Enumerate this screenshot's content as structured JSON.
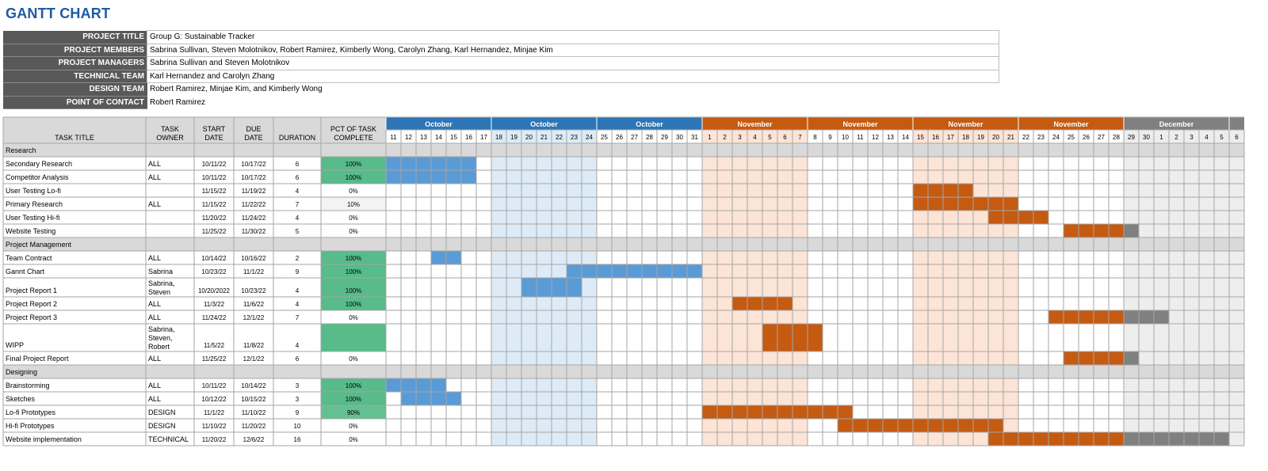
{
  "title": "GANTT CHART",
  "project_info": [
    {
      "label": "PROJECT TITLE",
      "value": "Group G: Sustainable Tracker"
    },
    {
      "label": "PROJECT MEMBERS",
      "value": "Sabrina Sullivan, Steven Molotnikov, Robert Ramirez, Kimberly Wong, Carolyn Zhang, Karl Hernandez, Minjae Kim"
    },
    {
      "label": "PROJECT MANAGERS",
      "value": "Sabrina Sullivan and Steven Molotnikov"
    },
    {
      "label": "TECHNICAL TEAM",
      "value": "Karl Hernandez and Carolyn Zhang"
    },
    {
      "label": "DESIGN TEAM",
      "value": "Robert Ramirez, Minjae Kim, and Kimberly Wong"
    },
    {
      "label": "POINT OF CONTACT",
      "value": "Robert Ramirez"
    }
  ],
  "colors": {
    "title": "#1f5aa6",
    "october": "#2e75b6",
    "october_bar": "#5b9bd5",
    "october_shade": "#ddebf7",
    "november": "#c55a11",
    "november_bar": "#c55a11",
    "november_shade": "#fce4d6",
    "december": "#808080",
    "december_bar": "#808080",
    "december_shade": "#ededed",
    "complete": "#57bb8a",
    "section": "#d9d9d9"
  },
  "chart_data": {
    "type": "table",
    "columns": [
      "TASK TITLE",
      "TASK OWNER",
      "START DATE",
      "DUE DATE",
      "DURATION",
      "PCT OF TASK COMPLETE"
    ],
    "months": [
      {
        "name": "October",
        "days": [
          11,
          12,
          13,
          14,
          15,
          16,
          17
        ],
        "color": "october",
        "shaded": false
      },
      {
        "name": "October",
        "days": [
          18,
          19,
          20,
          21,
          22,
          23,
          24
        ],
        "color": "october",
        "shaded": true
      },
      {
        "name": "October",
        "days": [
          25,
          26,
          27,
          28,
          29,
          30,
          31
        ],
        "color": "october",
        "shaded": false
      },
      {
        "name": "November",
        "days": [
          1,
          2,
          3,
          4,
          5,
          6,
          7
        ],
        "color": "november",
        "shaded": true
      },
      {
        "name": "November",
        "days": [
          8,
          9,
          10,
          11,
          12,
          13,
          14
        ],
        "color": "november",
        "shaded": false
      },
      {
        "name": "November",
        "days": [
          15,
          16,
          17,
          18,
          19,
          20,
          21
        ],
        "color": "november",
        "shaded": true
      },
      {
        "name": "November",
        "days": [
          22,
          23,
          24,
          25,
          26,
          27,
          28
        ],
        "color": "november",
        "shaded": false
      },
      {
        "name": "December",
        "days": [
          29,
          30,
          1,
          2,
          3,
          4,
          5
        ],
        "color": "december",
        "shaded": true
      },
      {
        "name": "",
        "days": [
          6
        ],
        "color": "december",
        "shaded": true
      }
    ],
    "rows": [
      {
        "section": "Research"
      },
      {
        "task": "Secondary Research",
        "owner": "ALL",
        "start": "10/11/22",
        "due": "10/17/22",
        "duration": "6",
        "pct": "100%",
        "bars": [
          [
            0,
            6
          ]
        ]
      },
      {
        "task": "Competitor Analysis",
        "owner": "ALL",
        "start": "10/11/22",
        "due": "10/17/22",
        "duration": "6",
        "pct": "100%",
        "bars": [
          [
            0,
            6
          ]
        ]
      },
      {
        "task": "User Testing Lo-fi",
        "owner": "",
        "start": "11/15/22",
        "due": "11/19/22",
        "duration": "4",
        "pct": "0%",
        "bars": [
          [
            35,
            39
          ]
        ]
      },
      {
        "task": "Primary Research",
        "owner": "ALL",
        "start": "11/15/22",
        "due": "11/22/22",
        "duration": "7",
        "pct": "10%",
        "bars": [
          [
            35,
            42
          ]
        ]
      },
      {
        "task": "User Testing Hi-fi",
        "owner": "",
        "start": "11/20/22",
        "due": "11/24/22",
        "duration": "4",
        "pct": "0%",
        "bars": [
          [
            40,
            44
          ]
        ]
      },
      {
        "task": "Website Testing",
        "owner": "",
        "start": "11/25/22",
        "due": "11/30/22",
        "duration": "5",
        "pct": "0%",
        "bars": [
          [
            45,
            50
          ]
        ]
      },
      {
        "section": "Project Management"
      },
      {
        "task": "Team Contract",
        "owner": "ALL",
        "start": "10/14/22",
        "due": "10/16/22",
        "duration": "2",
        "pct": "100%",
        "bars": [
          [
            3,
            5
          ]
        ]
      },
      {
        "task": "Gannt Chart",
        "owner": "Sabrina",
        "start": "10/23/22",
        "due": "11/1/22",
        "duration": "9",
        "pct": "100%",
        "bars": [
          [
            12,
            21
          ]
        ]
      },
      {
        "task": "Project Report 1",
        "owner": "Sabrina, Steven",
        "start": "10/20/2022",
        "due": "10/23/22",
        "duration": "4",
        "pct": "100%",
        "bars": [
          [
            9,
            13
          ]
        ]
      },
      {
        "task": "Project Report 2",
        "owner": "ALL",
        "start": "11/3/22",
        "due": "11/6/22",
        "duration": "4",
        "pct": "100%",
        "bars": [
          [
            23,
            27
          ]
        ]
      },
      {
        "task": "Project Report 3",
        "owner": "ALL",
        "start": "11/24/22",
        "due": "12/1/22",
        "duration": "7",
        "pct": "0%",
        "bars": [
          [
            44,
            52
          ]
        ]
      },
      {
        "task": "WIPP",
        "owner": "Sabrina, Steven, Robert",
        "start": "11/5/22",
        "due": "11/8/22",
        "duration": "4",
        "pct": "",
        "bars": [
          [
            25,
            29
          ]
        ]
      },
      {
        "task": "Final Project Report",
        "owner": "ALL",
        "start": "11/25/22",
        "due": "12/1/22",
        "duration": "6",
        "pct": "0%",
        "bars": [
          [
            45,
            50
          ]
        ]
      },
      {
        "section": "Designing"
      },
      {
        "task": "Brainstorming",
        "owner": "ALL",
        "start": "10/11/22",
        "due": "10/14/22",
        "duration": "3",
        "pct": "100%",
        "bars": [
          [
            0,
            4
          ]
        ]
      },
      {
        "task": "Sketches",
        "owner": "ALL",
        "start": "10/12/22",
        "due": "10/15/22",
        "duration": "3",
        "pct": "100%",
        "bars": [
          [
            1,
            5
          ]
        ]
      },
      {
        "task": "Lo-fi Prototypes",
        "owner": "DESIGN",
        "start": "11/1/22",
        "due": "11/10/22",
        "duration": "9",
        "pct": "90%",
        "bars": [
          [
            21,
            31
          ]
        ]
      },
      {
        "task": "Hi-fi Prototypes",
        "owner": "DESIGN",
        "start": "11/10/22",
        "due": "11/20/22",
        "duration": "10",
        "pct": "0%",
        "bars": [
          [
            30,
            41
          ]
        ]
      },
      {
        "task": "Website implementation",
        "owner": "TECHNICAL",
        "start": "11/20/22",
        "due": "12/6/22",
        "duration": "16",
        "pct": "0%",
        "bars": [
          [
            40,
            56
          ]
        ]
      }
    ]
  }
}
